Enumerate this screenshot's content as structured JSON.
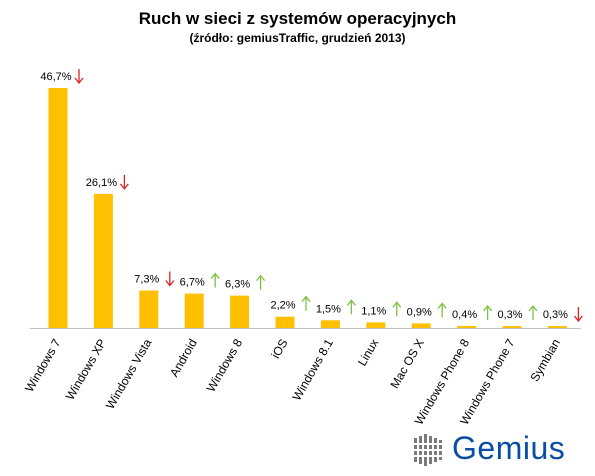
{
  "chart_data": {
    "type": "bar",
    "title": "Ruch w sieci z systemów operacyjnych",
    "subtitle": "(źródło: gemiusTraffic, grudzień 2013)",
    "categories": [
      "Windows 7",
      "Windows XP",
      "Windows Vista",
      "Android",
      "Windows 8",
      "iOS",
      "Windows 8.1",
      "Linux",
      "Mac OS X",
      "Windows Phone 8",
      "Windows Phone 7",
      "Symbian"
    ],
    "values": [
      46.7,
      26.1,
      7.3,
      6.7,
      6.3,
      2.2,
      1.5,
      1.1,
      0.9,
      0.4,
      0.3,
      0.3
    ],
    "labels": [
      "46,7%",
      "26,1%",
      "7,3%",
      "6,7%",
      "6,3%",
      "2,2%",
      "1,5%",
      "1,1%",
      "0,9%",
      "0,4%",
      "0,3%",
      "0,3%"
    ],
    "trends": [
      "down",
      "down",
      "down",
      "up",
      "up",
      "up",
      "up",
      "up",
      "up",
      "up",
      "up",
      "down"
    ],
    "ylim": [
      0,
      50
    ],
    "grid": false,
    "legend": "none",
    "colors": {
      "bar": "#ffc000",
      "up": "#7dc242",
      "down": "#d9251d",
      "axis": "#bfbfbf"
    }
  },
  "logo": {
    "text": "Gemius",
    "color": "#0a4ea3"
  }
}
